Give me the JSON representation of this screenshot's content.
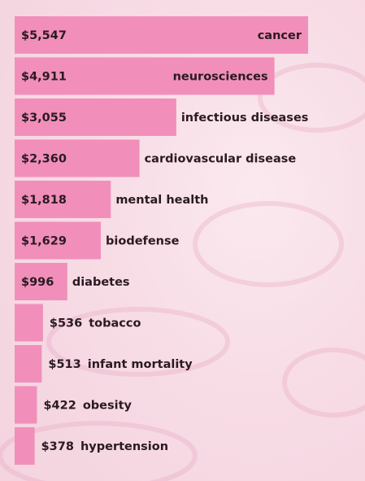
{
  "chart_data": {
    "type": "bar",
    "categories": [
      "cancer",
      "neurosciences",
      "infectious diseases",
      "cardiovascular disease",
      "mental health",
      "biodefense",
      "diabetes",
      "tobacco",
      "infant mortality",
      "obesity",
      "hypertension"
    ],
    "values": [
      5547,
      4911,
      3055,
      2360,
      1818,
      1629,
      996,
      536,
      513,
      422,
      378
    ],
    "value_labels": [
      "$5,547",
      "$4,911",
      "$3,055",
      "$2,360",
      "$1,818",
      "$1,629",
      "$996",
      "$536",
      "$513",
      "$422",
      "$378"
    ],
    "color": "#f18fba"
  }
}
